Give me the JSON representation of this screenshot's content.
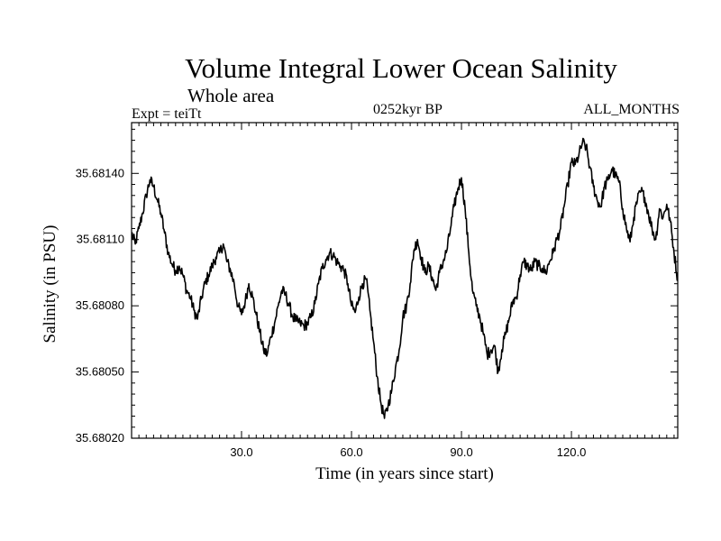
{
  "header": {
    "title": "Volume Integral Lower Ocean Salinity",
    "subtitle": "Whole area",
    "expt": "Expt = teiTt",
    "period": "0252kyr BP",
    "months": "ALL_MONTHS"
  },
  "chart_data": {
    "type": "line",
    "title": "Volume Integral Lower Ocean Salinity",
    "subtitle": "Whole area",
    "xlabel": "Time (in years since start)",
    "ylabel": "Salinity (in PSU)",
    "xlim": [
      0,
      149
    ],
    "ylim": [
      35.6802,
      35.68163
    ],
    "x_ticks": [
      30,
      60,
      90,
      120
    ],
    "x_tick_labels": [
      "30.0",
      "60.0",
      "90.0",
      "120.0"
    ],
    "y_ticks": [
      35.6802,
      35.6805,
      35.6808,
      35.6811,
      35.6814
    ],
    "y_tick_labels": [
      "35.68020",
      "35.68050",
      "35.68080",
      "35.68110",
      "35.68140"
    ],
    "grid": false,
    "line_color": "#000000",
    "series": [
      {
        "name": "Salinity",
        "x": [
          0,
          1,
          2,
          3,
          4,
          5,
          6,
          7,
          8,
          9,
          10,
          11,
          12,
          13,
          14,
          15,
          16,
          17,
          18,
          19,
          20,
          21,
          22,
          23,
          24,
          25,
          26,
          27,
          28,
          29,
          30,
          31,
          32,
          33,
          34,
          35,
          36,
          37,
          38,
          39,
          40,
          41,
          42,
          43,
          44,
          45,
          46,
          47,
          48,
          49,
          50,
          51,
          52,
          53,
          54,
          55,
          56,
          57,
          58,
          59,
          60,
          61,
          62,
          63,
          64,
          65,
          66,
          67,
          68,
          69,
          70,
          71,
          72,
          73,
          74,
          75,
          76,
          77,
          78,
          79,
          80,
          81,
          82,
          83,
          84,
          85,
          86,
          87,
          88,
          89,
          90,
          91,
          92,
          93,
          94,
          95,
          96,
          97,
          98,
          99,
          100,
          101,
          102,
          103,
          104,
          105,
          106,
          107,
          108,
          109,
          110,
          111,
          112,
          113,
          114,
          115,
          116,
          117,
          118,
          119,
          120,
          121,
          122,
          123,
          124,
          125,
          126,
          127,
          128,
          129,
          130,
          131,
          132,
          133,
          134,
          135,
          136,
          137,
          138,
          139,
          140,
          141,
          142,
          143,
          144,
          145,
          146,
          147,
          148,
          149
        ],
        "values": [
          35.68113,
          35.68108,
          35.68115,
          35.68122,
          35.6813,
          35.68137,
          35.68134,
          35.68128,
          35.68122,
          35.68113,
          35.68104,
          35.68099,
          35.68096,
          35.68098,
          35.68094,
          35.68087,
          35.68084,
          35.68078,
          35.68074,
          35.68083,
          35.6809,
          35.68094,
          35.68098,
          35.68102,
          35.68104,
          35.68108,
          35.681,
          35.68096,
          35.6809,
          35.6808,
          35.68076,
          35.68082,
          35.6809,
          35.68084,
          35.68076,
          35.68068,
          35.6806,
          35.68058,
          35.68066,
          35.68072,
          35.6808,
          35.68087,
          35.68085,
          35.6808,
          35.68075,
          35.68073,
          35.68072,
          35.68071,
          35.68072,
          35.68075,
          35.68081,
          35.6809,
          35.68097,
          35.68101,
          35.68104,
          35.68103,
          35.681,
          35.68098,
          35.68096,
          35.6809,
          35.6808,
          35.68077,
          35.68084,
          35.6809,
          35.68092,
          35.68078,
          35.68064,
          35.68048,
          35.68036,
          35.68029,
          35.68035,
          35.68042,
          35.68052,
          35.6806,
          35.68075,
          35.6808,
          35.6809,
          35.68105,
          35.6811,
          35.68102,
          35.68095,
          35.68098,
          35.68093,
          35.68087,
          35.68095,
          35.681,
          35.68105,
          35.68115,
          35.68125,
          35.68133,
          35.68138,
          35.68124,
          35.68104,
          35.68087,
          35.6808,
          35.68075,
          35.68067,
          35.68058,
          35.6806,
          35.68062,
          35.6805,
          35.6806,
          35.68067,
          35.68074,
          35.68082,
          35.68084,
          35.68094,
          35.681,
          35.68098,
          35.68096,
          35.681,
          35.68098,
          35.68097,
          35.68095,
          35.681,
          35.68104,
          35.6811,
          35.68115,
          35.68125,
          35.68135,
          35.68145,
          35.68144,
          35.68148,
          35.68154,
          35.68152,
          35.68143,
          35.68134,
          35.68128,
          35.68125,
          35.68134,
          35.68137,
          35.68142,
          35.68139,
          35.68136,
          35.68124,
          35.68115,
          35.68109,
          35.6812,
          35.68128,
          35.68132,
          35.68129,
          35.68122,
          35.68115,
          35.6811,
          35.68124,
          35.6812,
          35.68126,
          35.68118,
          35.68104,
          35.68092
        ]
      }
    ]
  }
}
